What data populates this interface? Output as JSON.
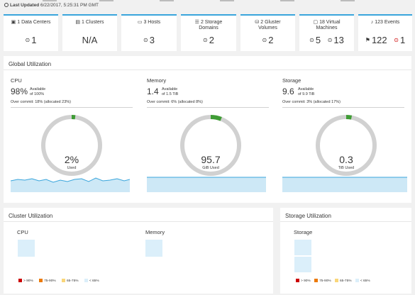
{
  "header": {
    "last_updated_label": "Last Updated",
    "last_updated_value": "6/22/2017, 5:25:31 PM GMT"
  },
  "cards": [
    {
      "icon": "datacenter-icon",
      "title": "1 Data Centers",
      "value": "1",
      "status": "up"
    },
    {
      "icon": "cluster-icon",
      "title": "1 Clusters",
      "value": "N/A"
    },
    {
      "icon": "host-icon",
      "title": "3 Hosts",
      "value": "3",
      "status": "up"
    },
    {
      "icon": "storage-domain-icon",
      "title": "2 Storage Domains",
      "title_line1": "2 Storage",
      "title_line2": "Domains",
      "value": "2",
      "status": "up"
    },
    {
      "icon": "gluster-volume-icon",
      "title": "2 Gluster Volumes",
      "title_line1": "2 Gluster",
      "title_line2": "Volumes",
      "value": "2",
      "status": "up"
    },
    {
      "icon": "vm-icon",
      "title": "18 Virtual Machines",
      "title_line1": "18 Virtual",
      "title_line2": "Machines",
      "value_a": "5",
      "value_b": "13"
    },
    {
      "icon": "bell-icon",
      "title": "123 Events",
      "value_a": "122",
      "value_b": "1"
    }
  ],
  "global": {
    "title": "Global Utilization",
    "cpu": {
      "name": "CPU",
      "big": "98%",
      "available": "Available",
      "of": "of 100%",
      "overcommit": "Over commit: 18% (allocated 23%)",
      "donut_value": "2%",
      "donut_unit": "Used",
      "used_fraction": 0.02
    },
    "memory": {
      "name": "Memory",
      "big": "1.4",
      "available": "Available",
      "of": "of 1.5 TiB",
      "overcommit": "Over commit: 6% (allocated 8%)",
      "donut_value": "95.7",
      "donut_unit": "GiB Used",
      "used_fraction": 0.06
    },
    "storage": {
      "name": "Storage",
      "big": "9.6",
      "available": "Available",
      "of": "of 9.9 TiB",
      "overcommit": "Over commit: 3% (allocated 17%)",
      "donut_value": "0.3",
      "donut_unit": "TiB Used",
      "used_fraction": 0.03
    }
  },
  "cluster": {
    "title": "Cluster Utilization",
    "cpu_label": "CPU",
    "memory_label": "Memory"
  },
  "storage_util": {
    "title": "Storage Utilization",
    "storage_label": "Storage"
  },
  "legend": {
    "l1": "> 90%",
    "l2": "75-90%",
    "l3": "65-75%",
    "l4": "< 65%",
    "colors": [
      "#cc0000",
      "#ec7a08",
      "#f9d67a",
      "#dbeffa"
    ]
  },
  "colors": {
    "accent": "#39a5dc",
    "donut_track": "#d1d1d1",
    "donut_used": "#3f9c35",
    "spark_fill": "#cde8f6",
    "spark_line": "#39a5dc"
  }
}
